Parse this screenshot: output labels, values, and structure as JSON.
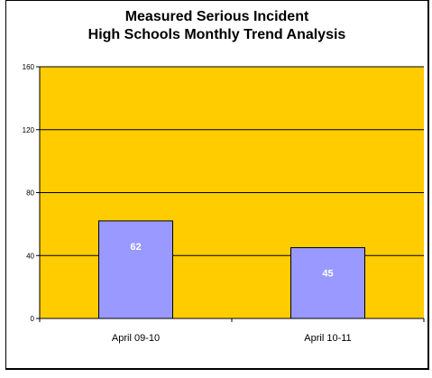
{
  "chart_data": {
    "type": "bar",
    "title_line1": "Measured Serious Incident",
    "title_line2": "High Schools Monthly Trend Analysis",
    "categories": [
      "April 09-10",
      "April 10-11"
    ],
    "values": [
      62,
      45
    ],
    "ylim": [
      0,
      160
    ],
    "yticks": [
      0,
      40,
      80,
      120,
      160
    ],
    "grid": true,
    "legend": "none",
    "colors": {
      "plot_background": "#FFCC00",
      "bar_fill": "#9999FF",
      "bar_stroke": "#000000",
      "data_label": "#FFFFFF"
    }
  }
}
